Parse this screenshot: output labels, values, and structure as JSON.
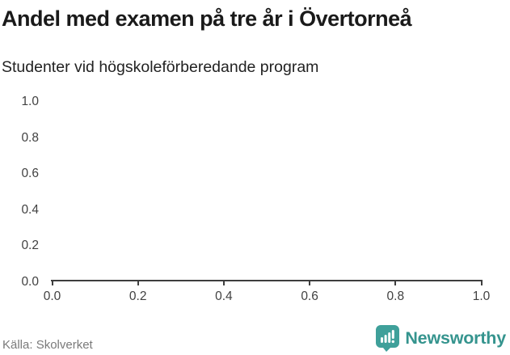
{
  "header": {
    "title": "Andel med examen på tre år i Övertorneå",
    "subtitle": "Studenter vid högskoleförberedande program"
  },
  "chart_data": {
    "type": "line",
    "title": "Andel med examen på tre år i Övertorneå",
    "subtitle": "Studenter vid högskoleförberedande program",
    "xlabel": "",
    "ylabel": "",
    "xlim": [
      0.0,
      1.0
    ],
    "ylim": [
      0.0,
      1.0
    ],
    "x_ticks": [
      "0.0",
      "0.2",
      "0.4",
      "0.6",
      "0.8",
      "1.0"
    ],
    "y_ticks": [
      "1.0",
      "0.8",
      "0.6",
      "0.4",
      "0.2",
      "0.0"
    ],
    "grid": false,
    "legend": null,
    "series": []
  },
  "footer": {
    "source": "Källa: Skolverket",
    "brand": "Newsworthy",
    "brand_icon": "bar-chart-speech-bubble-icon"
  },
  "colors": {
    "accent_teal": "#3fa09a",
    "brand_text": "#35948e",
    "axis": "#3e3e3e",
    "tick_label": "#414141",
    "title_text": "#1a1a1a",
    "source_text": "#7a7a7a"
  }
}
